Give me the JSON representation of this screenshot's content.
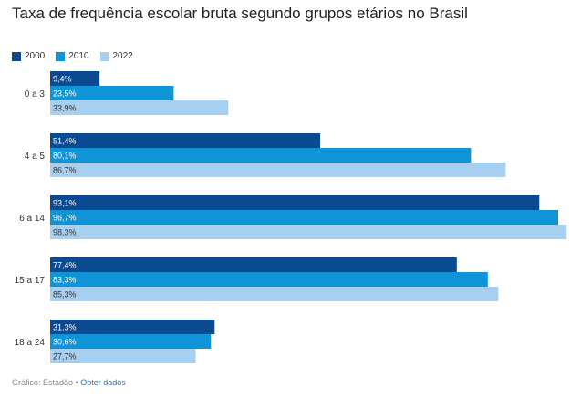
{
  "chart_data": {
    "type": "bar",
    "orientation": "horizontal",
    "title": "Taxa de frequência escolar bruta segundo grupos etários no Brasil",
    "categories": [
      "0 a 3",
      "4 a 5",
      "6 a 14",
      "15 a 17",
      "18 a 24"
    ],
    "series": [
      {
        "name": "2000",
        "color": "#0b4a91",
        "values": [
          9.4,
          51.4,
          93.1,
          77.4,
          31.3
        ],
        "labels": [
          "9,4%",
          "51,4%",
          "93,1%",
          "77,4%",
          "31,3%"
        ],
        "label_color": "#ffffff"
      },
      {
        "name": "2010",
        "color": "#0f94d8",
        "values": [
          23.5,
          80.1,
          96.7,
          83.3,
          30.6
        ],
        "labels": [
          "23,5%",
          "80,1%",
          "96,7%",
          "83,3%",
          "30,6%"
        ],
        "label_color": "#ffffff"
      },
      {
        "name": "2022",
        "color": "#a7cff0",
        "values": [
          33.9,
          86.7,
          98.3,
          85.3,
          27.7
        ],
        "labels": [
          "33,9%",
          "86,7%",
          "98,3%",
          "85,3%",
          "27,7%"
        ],
        "label_color": "#333333"
      }
    ],
    "xlim": [
      0,
      100
    ],
    "grid": false,
    "legend_position": "top-left"
  },
  "footer": {
    "source": "Gráfico: Estadão",
    "separator": "•",
    "link": "Obter dados"
  }
}
